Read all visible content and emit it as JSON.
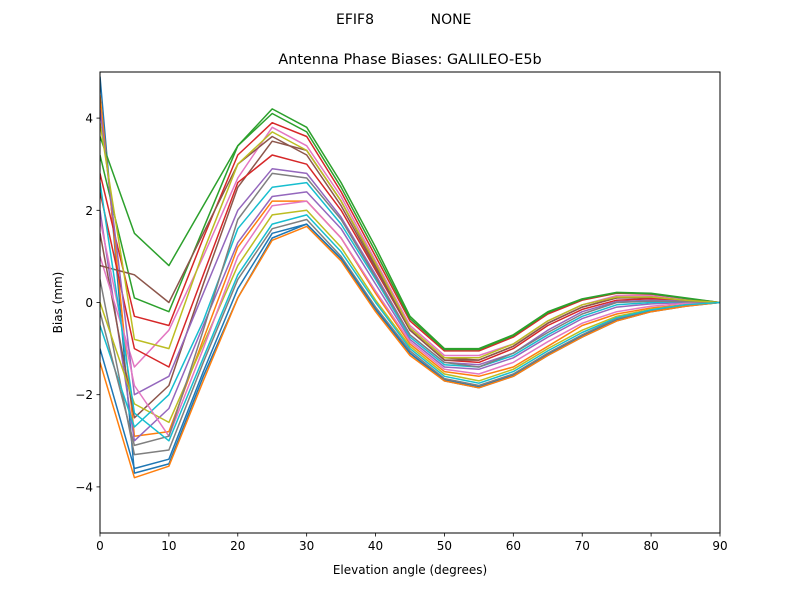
{
  "suptitle": {
    "left": "EFIF8",
    "right": "NONE"
  },
  "chart_data": {
    "type": "line",
    "title": "Antenna Phase Biases: GALILEO-E5b",
    "xlabel": "Elevation angle (degrees)",
    "ylabel": "Bias (mm)",
    "xlim": [
      0,
      90
    ],
    "ylim": [
      -5,
      5
    ],
    "xticks": [
      0,
      10,
      20,
      30,
      40,
      50,
      60,
      70,
      80,
      90
    ],
    "yticks": [
      -4,
      -2,
      0,
      2,
      4
    ],
    "ytick_labels": [
      "−4",
      "−2",
      "0",
      "2",
      "4"
    ],
    "grid": false,
    "legend": "none",
    "colors": [
      "#1f77b4",
      "#ff7f0e",
      "#2ca02c",
      "#d62728",
      "#9467bd",
      "#8c564b",
      "#e377c2",
      "#7f7f7f",
      "#bcbd22",
      "#17becf"
    ],
    "x": [
      0,
      5,
      10,
      15,
      20,
      25,
      30,
      35,
      40,
      45,
      50,
      55,
      60,
      65,
      70,
      75,
      80,
      85,
      90
    ],
    "series": [
      {
        "values": [
          4.9,
          -3.7,
          -3.5,
          -1.6,
          0.1,
          1.4,
          1.7,
          0.95,
          -0.15,
          -1.1,
          -1.68,
          -1.83,
          -1.58,
          -1.12,
          -0.72,
          -0.38,
          -0.19,
          -0.07,
          0
        ]
      },
      {
        "values": [
          4.5,
          -2.9,
          -2.8,
          -0.8,
          1.2,
          2.2,
          2.2,
          1.4,
          0.2,
          -0.9,
          -1.5,
          -1.6,
          -1.4,
          -0.95,
          -0.5,
          -0.25,
          -0.12,
          -0.05,
          0
        ]
      },
      {
        "values": [
          3.6,
          1.5,
          0.8,
          2.1,
          3.4,
          4.2,
          3.8,
          2.6,
          1.2,
          -0.3,
          -1.0,
          -1.0,
          -0.7,
          -0.2,
          0.08,
          0.22,
          0.2,
          0.1,
          0
        ]
      },
      {
        "values": [
          2.8,
          -0.3,
          -0.5,
          1.4,
          3.2,
          3.9,
          3.6,
          2.4,
          1.0,
          -0.4,
          -1.05,
          -1.05,
          -0.75,
          -0.25,
          0.05,
          0.2,
          0.18,
          0.08,
          0
        ]
      },
      {
        "values": [
          2.0,
          -3.0,
          -2.3,
          -0.5,
          1.3,
          2.3,
          2.4,
          1.6,
          0.4,
          -0.8,
          -1.4,
          -1.45,
          -1.2,
          -0.75,
          -0.35,
          -0.1,
          -0.03,
          0,
          0
        ]
      },
      {
        "values": [
          1.5,
          -2.5,
          -1.8,
          0.4,
          2.5,
          3.5,
          3.3,
          2.2,
          0.8,
          -0.55,
          -1.2,
          -1.25,
          -0.95,
          -0.45,
          -0.1,
          0.1,
          0.1,
          0.05,
          0
        ]
      },
      {
        "values": [
          1.0,
          -1.4,
          -0.6,
          1.0,
          2.7,
          3.8,
          3.4,
          2.3,
          0.9,
          -0.5,
          -1.15,
          -1.15,
          -0.9,
          -0.4,
          -0.05,
          0.15,
          0.15,
          0.06,
          0
        ]
      },
      {
        "values": [
          0.5,
          -3.3,
          -3.2,
          -1.3,
          0.5,
          1.6,
          1.8,
          1.0,
          -0.1,
          -1.05,
          -1.65,
          -1.8,
          -1.55,
          -1.1,
          -0.7,
          -0.35,
          -0.17,
          -0.06,
          0
        ]
      },
      {
        "values": [
          0,
          -2.2,
          -2.6,
          -0.9,
          0.8,
          1.9,
          2.0,
          1.2,
          0.05,
          -0.95,
          -1.55,
          -1.7,
          -1.45,
          -1.0,
          -0.6,
          -0.3,
          -0.15,
          -0.05,
          0
        ]
      },
      {
        "values": [
          -0.5,
          -2.7,
          -2.0,
          -0.4,
          1.6,
          2.5,
          2.6,
          1.7,
          0.5,
          -0.75,
          -1.35,
          -1.4,
          -1.15,
          -0.7,
          -0.3,
          -0.05,
          0,
          0.02,
          0
        ]
      },
      {
        "values": [
          -1.0,
          -3.6,
          -3.4,
          -1.5,
          0.3,
          1.5,
          1.7,
          0.95,
          -0.15,
          -1.1,
          -1.7,
          -1.85,
          -1.6,
          -1.15,
          -0.75,
          -0.4,
          -0.2,
          -0.08,
          0
        ]
      },
      {
        "values": [
          -1.3,
          -3.8,
          -3.55,
          -1.7,
          0.1,
          1.35,
          1.65,
          0.9,
          -0.2,
          -1.15,
          -1.7,
          -1.85,
          -1.6,
          -1.15,
          -0.75,
          -0.4,
          -0.2,
          -0.08,
          0
        ]
      },
      {
        "values": [
          3.2,
          0.1,
          -0.2,
          1.6,
          3.4,
          4.1,
          3.7,
          2.5,
          1.1,
          -0.35,
          -1.02,
          -1.02,
          -0.72,
          -0.22,
          0.07,
          0.21,
          0.19,
          0.09,
          0
        ]
      },
      {
        "values": [
          2.4,
          -1.0,
          -1.4,
          0.6,
          2.6,
          3.2,
          3.0,
          2.0,
          0.7,
          -0.6,
          -1.25,
          -1.3,
          -1.0,
          -0.5,
          -0.15,
          0.05,
          0.08,
          0.04,
          0
        ]
      },
      {
        "values": [
          4.2,
          -2.0,
          -1.6,
          0.2,
          2.0,
          2.9,
          2.8,
          1.85,
          0.6,
          -0.7,
          -1.3,
          -1.35,
          -1.1,
          -0.6,
          -0.2,
          0.02,
          0.05,
          0.03,
          0
        ]
      },
      {
        "values": [
          0.8,
          0.6,
          0.0,
          1.5,
          3.0,
          3.6,
          3.2,
          2.1,
          0.75,
          -0.6,
          -1.25,
          -1.25,
          -0.95,
          -0.45,
          -0.1,
          0.1,
          0.12,
          0.05,
          0
        ]
      },
      {
        "values": [
          1.8,
          -1.8,
          -2.9,
          -1.0,
          1.0,
          2.1,
          2.2,
          1.4,
          0.25,
          -0.85,
          -1.45,
          -1.55,
          -1.3,
          -0.85,
          -0.45,
          -0.2,
          -0.08,
          -0.02,
          0
        ]
      },
      {
        "values": [
          -0.2,
          -3.1,
          -2.9,
          -0.6,
          1.8,
          2.8,
          2.7,
          1.8,
          0.55,
          -0.7,
          -1.3,
          -1.4,
          -1.1,
          -0.65,
          -0.25,
          0,
          0.03,
          0.02,
          0
        ]
      },
      {
        "values": [
          3.9,
          -0.8,
          -1.0,
          1.1,
          3.0,
          3.7,
          3.3,
          2.2,
          0.85,
          -0.55,
          -1.2,
          -1.2,
          -0.9,
          -0.4,
          -0.05,
          0.12,
          0.12,
          0.05,
          0
        ]
      },
      {
        "values": [
          2.6,
          -2.4,
          -3.0,
          -1.2,
          0.6,
          1.7,
          1.9,
          1.1,
          0.0,
          -1.0,
          -1.6,
          -1.75,
          -1.5,
          -1.05,
          -0.65,
          -0.33,
          -0.16,
          -0.05,
          0
        ]
      }
    ]
  }
}
